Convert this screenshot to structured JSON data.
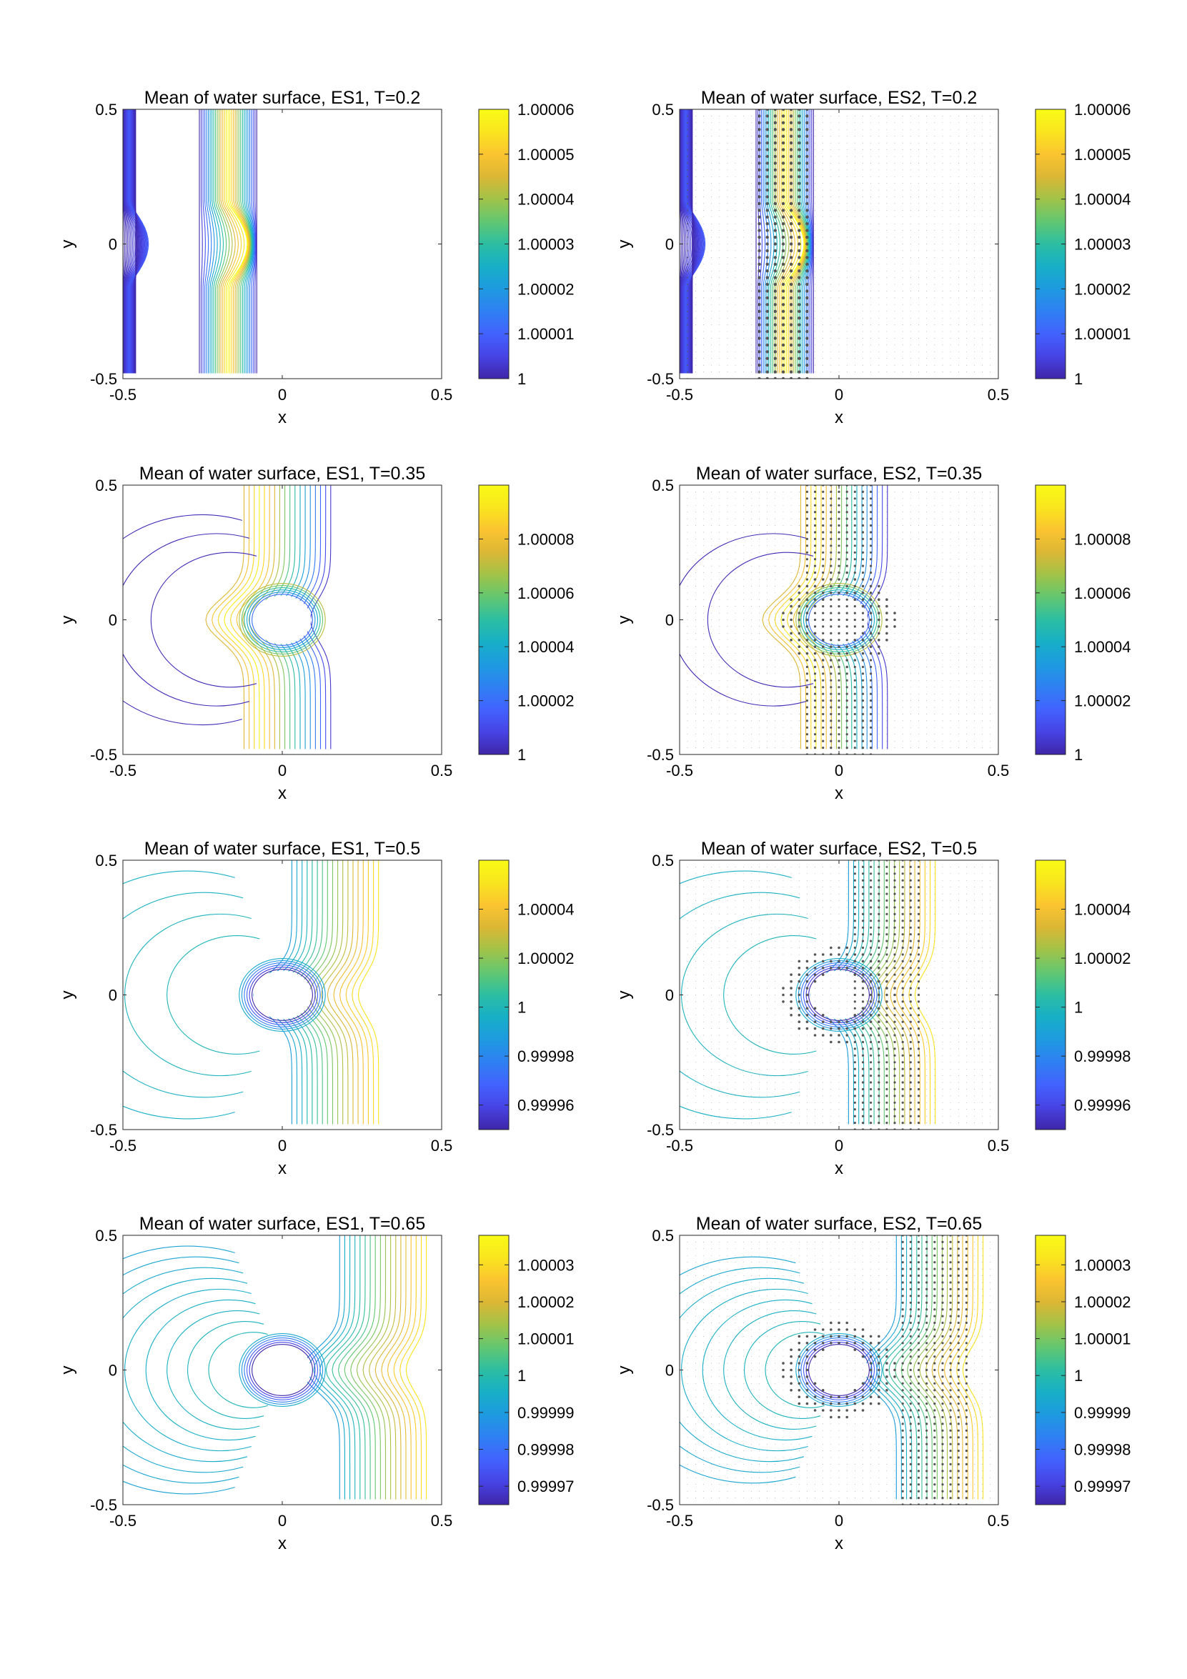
{
  "figure": {
    "description_free": true
  },
  "colormap": [
    "#3e26a8",
    "#4743e4",
    "#4262fe",
    "#2f80f2",
    "#1e9ae0",
    "#17afc7",
    "#2cbea2",
    "#62c771",
    "#a1c348",
    "#dbb735",
    "#fbc430",
    "#f9e51e",
    "#f9fb15"
  ],
  "chart_data": [
    {
      "type": "contour",
      "title": "Mean of water surface, ES1, T=0.2",
      "xlabel": "x",
      "ylabel": "y",
      "xlim": [
        -0.5,
        0.5
      ],
      "ylim": [
        -0.5,
        0.5
      ],
      "xticks": [
        "-0.5",
        "0",
        "0.5"
      ],
      "yticks": [
        "-0.5",
        "0",
        "0.5"
      ],
      "colorbar": {
        "min": 1.0,
        "max": 1.00006,
        "ticks": [
          "1",
          "1.00001",
          "1.00002",
          "1.00003",
          "1.00004",
          "1.00005",
          "1.00006"
        ],
        "tick_values": [
          1.0,
          1.00001,
          1.00002,
          1.00003,
          1.00004,
          1.00005,
          1.00006
        ]
      },
      "pattern": "vertical_bands",
      "time": 0.2,
      "quiver": false,
      "bands": [
        {
          "center": -0.48,
          "halfwidth": 0.02,
          "peak": 0.15
        },
        {
          "center": -0.17,
          "halfwidth": 0.09,
          "peak": 1.0
        }
      ]
    },
    {
      "type": "contour",
      "title": "Mean of water surface, ES2, T=0.2",
      "xlabel": "x",
      "ylabel": "y",
      "xlim": [
        -0.5,
        0.5
      ],
      "ylim": [
        -0.5,
        0.5
      ],
      "xticks": [
        "-0.5",
        "0",
        "0.5"
      ],
      "yticks": [
        "-0.5",
        "0",
        "0.5"
      ],
      "colorbar": {
        "min": 1.0,
        "max": 1.00006,
        "ticks": [
          "1",
          "1.00001",
          "1.00002",
          "1.00003",
          "1.00004",
          "1.00005",
          "1.00006"
        ],
        "tick_values": [
          1.0,
          1.00001,
          1.00002,
          1.00003,
          1.00004,
          1.00005,
          1.00006
        ]
      },
      "pattern": "vertical_bands",
      "time": 0.2,
      "quiver": true,
      "bands": [
        {
          "center": -0.48,
          "halfwidth": 0.02,
          "peak": 0.15
        },
        {
          "center": -0.17,
          "halfwidth": 0.09,
          "peak": 1.0
        }
      ]
    },
    {
      "type": "contour",
      "title": "Mean of water surface, ES1, T=0.35",
      "xlabel": "x",
      "ylabel": "y",
      "xlim": [
        -0.5,
        0.5
      ],
      "ylim": [
        -0.5,
        0.5
      ],
      "xticks": [
        "-0.5",
        "0",
        "0.5"
      ],
      "yticks": [
        "-0.5",
        "0",
        "0.5"
      ],
      "colorbar": {
        "min": 1.0,
        "max": 1.0001,
        "ticks": [
          "1",
          "1.00002",
          "1.00004",
          "1.00006",
          "1.00008"
        ],
        "tick_values": [
          1.0,
          1.00002,
          1.00004,
          1.00006,
          1.00008
        ]
      },
      "pattern": "wave_cylinder",
      "time": 0.35,
      "quiver": false,
      "front_x": 0.0,
      "arcs": [
        0.25,
        0.32,
        0.39
      ]
    },
    {
      "type": "contour",
      "title": "Mean of water surface, ES2, T=0.35",
      "xlabel": "x",
      "ylabel": "y",
      "xlim": [
        -0.5,
        0.5
      ],
      "ylim": [
        -0.5,
        0.5
      ],
      "xticks": [
        "-0.5",
        "0",
        "0.5"
      ],
      "yticks": [
        "-0.5",
        "0",
        "0.5"
      ],
      "colorbar": {
        "min": 1.0,
        "max": 1.0001,
        "ticks": [
          "1",
          "1.00002",
          "1.00004",
          "1.00006",
          "1.00008"
        ],
        "tick_values": [
          1.0,
          1.00002,
          1.00004,
          1.00006,
          1.00008
        ]
      },
      "pattern": "wave_cylinder",
      "time": 0.35,
      "quiver": true,
      "front_x": 0.0,
      "arcs": [
        0.25,
        0.32
      ]
    },
    {
      "type": "contour",
      "title": "Mean of water surface, ES1, T=0.5",
      "xlabel": "x",
      "ylabel": "y",
      "xlim": [
        -0.5,
        0.5
      ],
      "ylim": [
        -0.5,
        0.5
      ],
      "xticks": [
        "-0.5",
        "0",
        "0.5"
      ],
      "yticks": [
        "-0.5",
        "0",
        "0.5"
      ],
      "colorbar": {
        "min": 0.99995,
        "max": 1.00006,
        "ticks": [
          "0.99996",
          "0.99998",
          "1",
          "1.00002",
          "1.00004"
        ],
        "tick_values": [
          0.99996,
          0.99998,
          1.0,
          1.00002,
          1.00004
        ]
      },
      "pattern": "scatter_field",
      "time": 0.5,
      "quiver": false,
      "front_x": 0.15,
      "arcs": [
        0.22,
        0.3,
        0.38,
        0.46
      ]
    },
    {
      "type": "contour",
      "title": "Mean of water surface, ES2, T=0.5",
      "xlabel": "x",
      "ylabel": "y",
      "xlim": [
        -0.5,
        0.5
      ],
      "ylim": [
        -0.5,
        0.5
      ],
      "xticks": [
        "-0.5",
        "0",
        "0.5"
      ],
      "yticks": [
        "-0.5",
        "0",
        "0.5"
      ],
      "colorbar": {
        "min": 0.99995,
        "max": 1.00006,
        "ticks": [
          "0.99996",
          "0.99998",
          "1",
          "1.00002",
          "1.00004"
        ],
        "tick_values": [
          0.99996,
          0.99998,
          1.0,
          1.00002,
          1.00004
        ]
      },
      "pattern": "scatter_field",
      "time": 0.5,
      "quiver": true,
      "front_x": 0.15,
      "arcs": [
        0.22,
        0.3,
        0.38,
        0.46
      ]
    },
    {
      "type": "contour",
      "title": "Mean of water surface, ES1, T=0.65",
      "xlabel": "x",
      "ylabel": "y",
      "xlim": [
        -0.5,
        0.5
      ],
      "ylim": [
        -0.5,
        0.5
      ],
      "xticks": [
        "-0.5",
        "0",
        "0.5"
      ],
      "yticks": [
        "-0.5",
        "0",
        "0.5"
      ],
      "colorbar": {
        "min": 0.999965,
        "max": 1.000038,
        "ticks": [
          "0.99997",
          "0.99998",
          "0.99999",
          "1",
          "1.00001",
          "1.00002",
          "1.00003"
        ],
        "tick_values": [
          0.99997,
          0.99998,
          0.99999,
          1.0,
          1.00001,
          1.00002,
          1.00003
        ]
      },
      "pattern": "scatter_field",
      "time": 0.65,
      "quiver": false,
      "front_x": 0.3,
      "arcs": [
        0.14,
        0.18,
        0.22,
        0.26,
        0.3,
        0.34,
        0.38,
        0.42,
        0.46
      ]
    },
    {
      "type": "contour",
      "title": "Mean of water surface, ES2, T=0.65",
      "xlabel": "x",
      "ylabel": "y",
      "xlim": [
        -0.5,
        0.5
      ],
      "ylim": [
        -0.5,
        0.5
      ],
      "xticks": [
        "-0.5",
        "0",
        "0.5"
      ],
      "yticks": [
        "-0.5",
        "0",
        "0.5"
      ],
      "colorbar": {
        "min": 0.999965,
        "max": 1.000038,
        "ticks": [
          "0.99997",
          "0.99998",
          "0.99999",
          "1",
          "1.00001",
          "1.00002",
          "1.00003"
        ],
        "tick_values": [
          0.99997,
          0.99998,
          0.99999,
          1.0,
          1.00001,
          1.00002,
          1.00003
        ]
      },
      "pattern": "scatter_field",
      "time": 0.65,
      "quiver": true,
      "front_x": 0.3,
      "arcs": [
        0.14,
        0.18,
        0.22,
        0.26,
        0.3,
        0.34,
        0.38,
        0.42
      ]
    }
  ]
}
